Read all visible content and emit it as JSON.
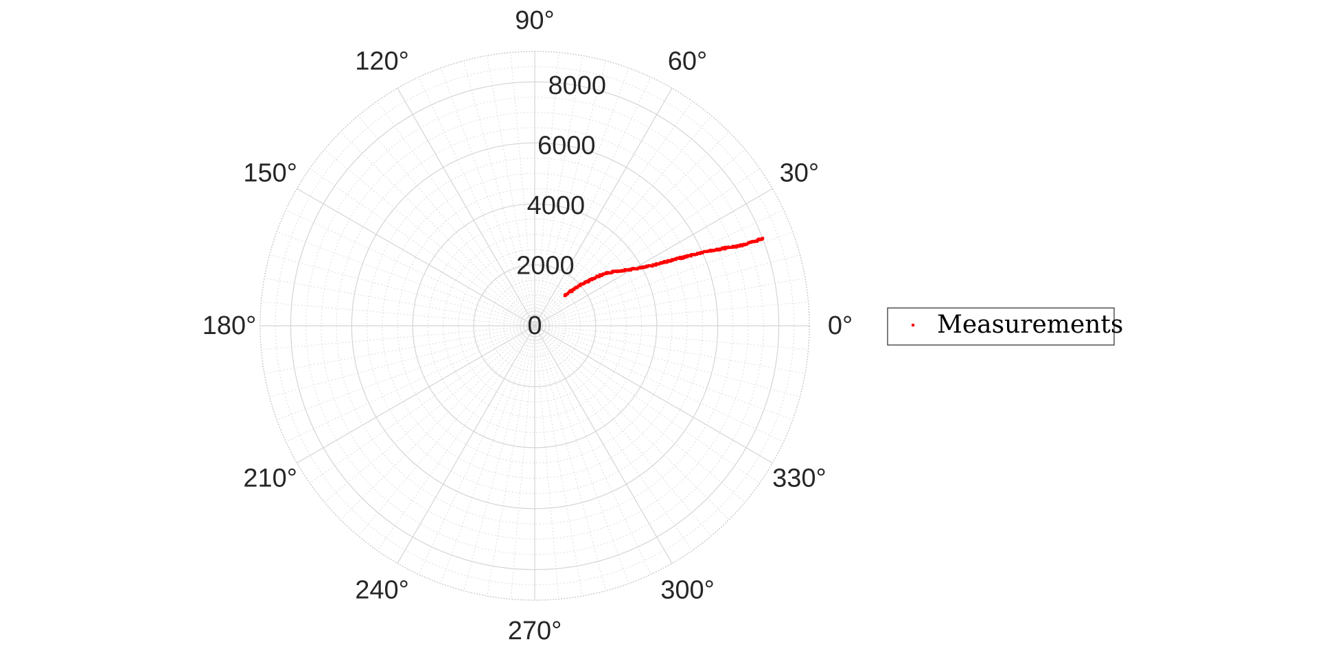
{
  "chart_data": {
    "type": "scatter",
    "coordinate_system": "polar",
    "angle_unit": "degrees",
    "theta_ticks": [
      {
        "value": 0,
        "label": "0°"
      },
      {
        "value": 30,
        "label": "30°"
      },
      {
        "value": 60,
        "label": "60°"
      },
      {
        "value": 90,
        "label": "90°"
      },
      {
        "value": 120,
        "label": "120°"
      },
      {
        "value": 150,
        "label": "150°"
      },
      {
        "value": 180,
        "label": "180°"
      },
      {
        "value": 210,
        "label": "210°"
      },
      {
        "value": 240,
        "label": "240°"
      },
      {
        "value": 270,
        "label": "270°"
      },
      {
        "value": 300,
        "label": "300°"
      },
      {
        "value": 330,
        "label": "330°"
      }
    ],
    "r_ticks": [
      {
        "value": 0,
        "label": "0"
      },
      {
        "value": 2000,
        "label": "2000"
      },
      {
        "value": 4000,
        "label": "4000"
      },
      {
        "value": 6000,
        "label": "6000"
      },
      {
        "value": 8000,
        "label": "8000"
      }
    ],
    "rlim": [
      0,
      9000
    ],
    "grid": true,
    "minor_grid": true,
    "legend": {
      "placement": "right",
      "entries": [
        "Measurements"
      ]
    },
    "series": [
      {
        "name": "Measurements",
        "color": "#ff0000",
        "marker": "point",
        "points": [
          {
            "theta": 45.0,
            "r": 1400
          },
          {
            "theta": 43.5,
            "r": 1700
          },
          {
            "theta": 41.8,
            "r": 2000
          },
          {
            "theta": 40.0,
            "r": 2300
          },
          {
            "theta": 38.2,
            "r": 2600
          },
          {
            "theta": 36.2,
            "r": 2900
          },
          {
            "theta": 34.0,
            "r": 3200
          },
          {
            "theta": 31.5,
            "r": 3500
          },
          {
            "theta": 29.5,
            "r": 3800
          },
          {
            "theta": 28.0,
            "r": 4100
          },
          {
            "theta": 27.0,
            "r": 4400
          },
          {
            "theta": 26.3,
            "r": 4700
          },
          {
            "theta": 25.5,
            "r": 5000
          },
          {
            "theta": 24.9,
            "r": 5300
          },
          {
            "theta": 24.3,
            "r": 5600
          },
          {
            "theta": 23.8,
            "r": 5900
          },
          {
            "theta": 23.3,
            "r": 6200
          },
          {
            "theta": 22.6,
            "r": 6500
          },
          {
            "theta": 22.1,
            "r": 6800
          },
          {
            "theta": 21.5,
            "r": 7100
          },
          {
            "theta": 21.2,
            "r": 7400
          },
          {
            "theta": 21.0,
            "r": 7700
          },
          {
            "theta": 21.0,
            "r": 8000
          }
        ]
      }
    ]
  }
}
